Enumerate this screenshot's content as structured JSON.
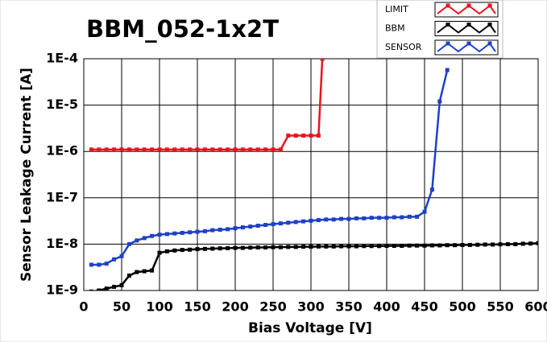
{
  "chart_data": {
    "type": "line",
    "title": "BBM_052-1x2T",
    "x_label": "Bias Voltage [V]",
    "y_label": "Sensor Leakage Current [A]",
    "xlim": [
      0,
      600
    ],
    "xticks": [
      0,
      50,
      100,
      150,
      200,
      250,
      300,
      350,
      400,
      450,
      500,
      550,
      600
    ],
    "ylim": [
      1e-09,
      0.0001
    ],
    "log_y": true,
    "grid": true,
    "yticks": [
      {
        "value": 1e-09,
        "label": "1E-9"
      },
      {
        "value": 1e-08,
        "label": "1E-8"
      },
      {
        "value": 1e-07,
        "label": "1E-7"
      },
      {
        "value": 1e-06,
        "label": "1E-6"
      },
      {
        "value": 1e-05,
        "label": "1E-5"
      },
      {
        "value": 0.0001,
        "label": "1E-4"
      }
    ],
    "series": [
      {
        "name": "LIMIT",
        "color": "#e8141c",
        "x": [
          10,
          20,
          30,
          40,
          50,
          60,
          70,
          80,
          90,
          100,
          110,
          120,
          130,
          140,
          150,
          160,
          170,
          180,
          190,
          200,
          210,
          220,
          230,
          240,
          250,
          260,
          270,
          280,
          290,
          300,
          310,
          315
        ],
        "values": [
          1.1e-06,
          1.1e-06,
          1.1e-06,
          1.1e-06,
          1.1e-06,
          1.1e-06,
          1.1e-06,
          1.1e-06,
          1.1e-06,
          1.1e-06,
          1.1e-06,
          1.1e-06,
          1.1e-06,
          1.1e-06,
          1.1e-06,
          1.1e-06,
          1.1e-06,
          1.1e-06,
          1.1e-06,
          1.1e-06,
          1.1e-06,
          1.1e-06,
          1.1e-06,
          1.1e-06,
          1.1e-06,
          1.1e-06,
          2.2e-06,
          2.2e-06,
          2.2e-06,
          2.2e-06,
          2.2e-06,
          0.0001
        ]
      },
      {
        "name": "BBM",
        "color": "#000000",
        "x": [
          10,
          20,
          30,
          40,
          50,
          60,
          70,
          80,
          90,
          100,
          110,
          120,
          130,
          140,
          150,
          160,
          170,
          180,
          190,
          200,
          210,
          220,
          230,
          240,
          250,
          260,
          270,
          280,
          290,
          300,
          310,
          320,
          330,
          340,
          350,
          360,
          370,
          380,
          390,
          400,
          410,
          420,
          430,
          440,
          450,
          460,
          470,
          480,
          490,
          500,
          510,
          520,
          530,
          540,
          550,
          560,
          570,
          580,
          590,
          600
        ],
        "values": [
          9.5e-10,
          1e-09,
          1.1e-09,
          1.2e-09,
          1.3e-09,
          2.1e-09,
          2.5e-09,
          2.6e-09,
          2.7e-09,
          6.5e-09,
          7e-09,
          7.3e-09,
          7.5e-09,
          7.6e-09,
          7.8e-09,
          7.9e-09,
          8e-09,
          8.1e-09,
          8.2e-09,
          8.3e-09,
          8.3e-09,
          8.4e-09,
          8.5e-09,
          8.5e-09,
          8.6e-09,
          8.6e-09,
          8.7e-09,
          8.7e-09,
          8.8e-09,
          8.8e-09,
          8.9e-09,
          8.9e-09,
          8.9e-09,
          9e-09,
          9e-09,
          9e-09,
          9.1e-09,
          9.1e-09,
          9.1e-09,
          9.2e-09,
          9.2e-09,
          9.2e-09,
          9.3e-09,
          9.3e-09,
          9.3e-09,
          9.4e-09,
          9.4e-09,
          9.5e-09,
          9.5e-09,
          9.6e-09,
          9.6e-09,
          9.7e-09,
          9.8e-09,
          9.8e-09,
          9.9e-09,
          1e-08,
          1e-08,
          1.02e-08,
          1.03e-08,
          1.05e-08
        ]
      },
      {
        "name": "SENSOR",
        "color": "#1e40c8",
        "x": [
          10,
          20,
          30,
          40,
          50,
          60,
          70,
          80,
          90,
          100,
          110,
          120,
          130,
          140,
          150,
          160,
          170,
          180,
          190,
          200,
          210,
          220,
          230,
          240,
          250,
          260,
          270,
          280,
          290,
          300,
          310,
          320,
          330,
          340,
          350,
          360,
          370,
          380,
          390,
          400,
          410,
          420,
          430,
          440,
          450,
          460,
          470,
          480
        ],
        "values": [
          3.6e-09,
          3.6e-09,
          3.8e-09,
          4.7e-09,
          5.5e-09,
          1e-08,
          1.2e-08,
          1.35e-08,
          1.5e-08,
          1.6e-08,
          1.65e-08,
          1.7e-08,
          1.75e-08,
          1.8e-08,
          1.85e-08,
          1.9e-08,
          2e-08,
          2.05e-08,
          2.1e-08,
          2.2e-08,
          2.3e-08,
          2.4e-08,
          2.5e-08,
          2.6e-08,
          2.7e-08,
          2.8e-08,
          2.9e-08,
          3e-08,
          3.1e-08,
          3.2e-08,
          3.3e-08,
          3.4e-08,
          3.4e-08,
          3.5e-08,
          3.5e-08,
          3.6e-08,
          3.6e-08,
          3.7e-08,
          3.7e-08,
          3.7e-08,
          3.8e-08,
          3.8e-08,
          3.9e-08,
          3.9e-08,
          5e-08,
          1.5e-07,
          1.2e-05,
          5.7e-05
        ]
      }
    ]
  }
}
